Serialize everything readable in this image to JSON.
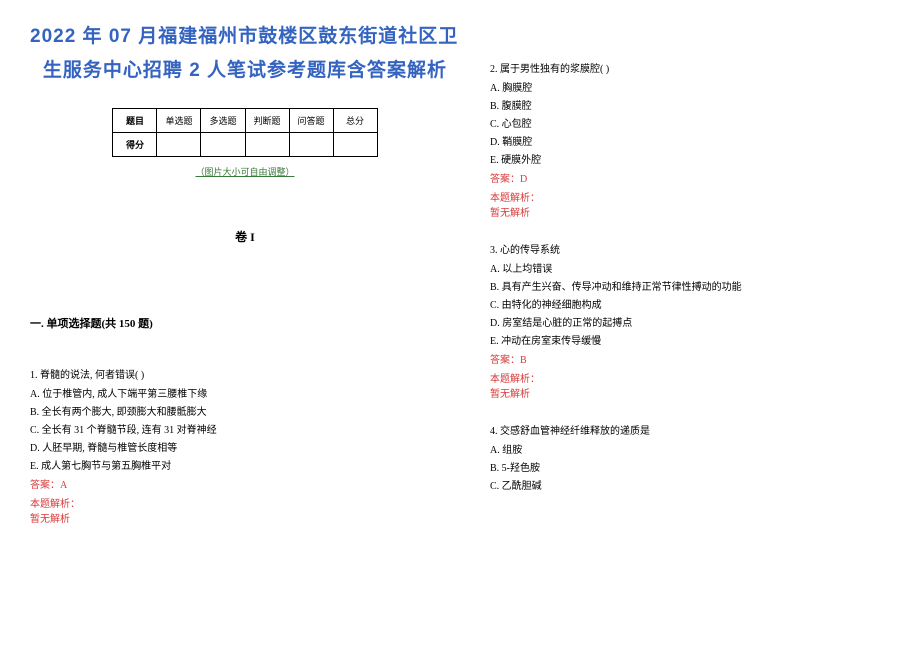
{
  "title_line1": "2022 年 07 月福建福州市鼓楼区鼓东街道社区卫",
  "title_line2": "生服务中心招聘 2 人笔试参考题库含答案解析",
  "table_headers": [
    "题目",
    "单选题",
    "多选题",
    "判断题",
    "问答题",
    "总分"
  ],
  "table_row_label": "得分",
  "adjust_note": "（图片大小可自由调整）",
  "volume": "卷 I",
  "section_title": "一. 单项选择题(共 150 题)",
  "questions": [
    {
      "num": "1",
      "text": "1. 脊髓的说法, 何者错误(  )",
      "options": [
        "A. 位于椎管内, 成人下端平第三腰椎下缘",
        "B. 全长有两个膨大, 即颈膨大和腰骶膨大",
        "C. 全长有 31 个脊髓节段, 连有 31 对脊神经",
        "D. 人胚早期, 脊髓与椎管长度相等",
        "E. 成人第七胸节与第五胸椎平对"
      ],
      "answer": "答案：A",
      "analysis_label": "本题解析：",
      "analysis": "暂无解析"
    },
    {
      "num": "2",
      "text": "2. 属于男性独有的浆膜腔(  )",
      "options": [
        "A. 胸膜腔",
        "B. 腹膜腔",
        "C. 心包腔",
        "D. 鞘膜腔",
        "E. 硬膜外腔"
      ],
      "answer": "答案：D",
      "analysis_label": "本题解析：",
      "analysis": "暂无解析"
    },
    {
      "num": "3",
      "text": "3. 心的传导系统",
      "options": [
        "A. 以上均错误",
        "B. 具有产生兴奋、传导冲动和维持正常节律性搏动的功能",
        "C. 由特化的神经细胞构成",
        "D. 房室结是心脏的正常的起搏点",
        "E. 冲动在房室束传导缓慢"
      ],
      "answer": "答案：B",
      "analysis_label": "本题解析：",
      "analysis": "暂无解析"
    },
    {
      "num": "4",
      "text": "4. 交感舒血管神经纤维释放的递质是",
      "options": [
        "A. 组胺",
        "B. 5-羟色胺",
        "C. 乙酰胆碱"
      ],
      "answer": "",
      "analysis_label": "",
      "analysis": ""
    }
  ]
}
